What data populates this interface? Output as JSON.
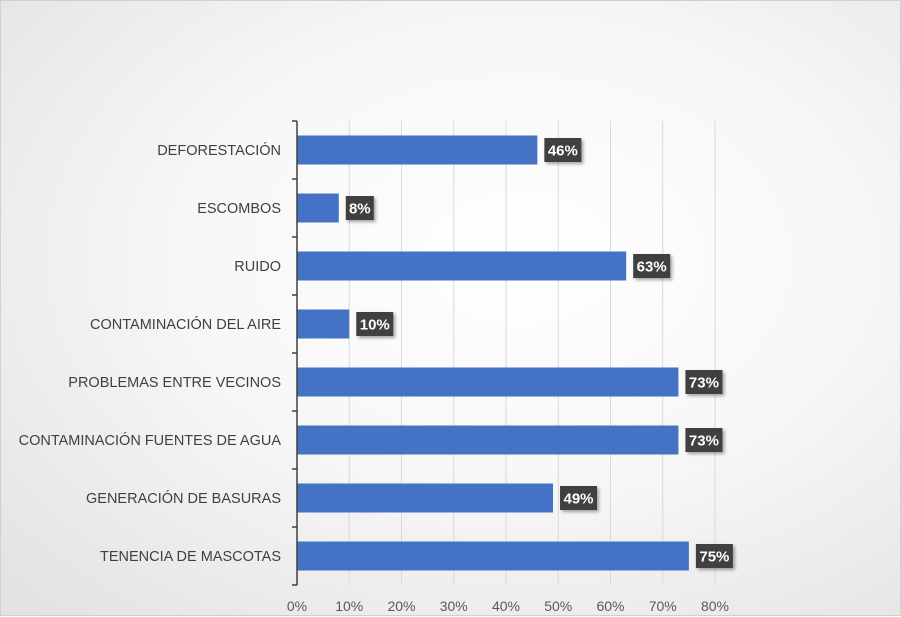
{
  "chart_data": {
    "type": "bar",
    "orientation": "horizontal",
    "title": "",
    "xlabel": "",
    "ylabel": "",
    "categories": [
      "DEFORESTACIÓN",
      "ESCOMBOS",
      "RUIDO",
      "CONTAMINACIÓN DEL AIRE",
      "PROBLEMAS ENTRE VECINOS",
      "CONTAMINACIÓN FUENTES DE AGUA",
      "GENERACIÓN DE BASURAS",
      "TENENCIA DE MASCOTAS"
    ],
    "values": [
      46,
      8,
      63,
      10,
      73,
      73,
      49,
      75
    ],
    "data_labels": [
      "46%",
      "8%",
      "63%",
      "10%",
      "73%",
      "73%",
      "49%",
      "75%"
    ],
    "x_ticks": [
      0,
      10,
      20,
      30,
      40,
      50,
      60,
      70,
      80
    ],
    "x_tick_labels": [
      "0%",
      "10%",
      "20%",
      "30%",
      "40%",
      "50%",
      "60%",
      "70%",
      "80%"
    ],
    "xlim": [
      0,
      80
    ],
    "grid": "vertical",
    "legend": "none",
    "colors": {
      "bar": "#4472C4",
      "data_label_bg": "#404040",
      "data_label_text": "#FFFFFF",
      "gridline": "#D9D9D9",
      "axis": "#404040"
    }
  }
}
